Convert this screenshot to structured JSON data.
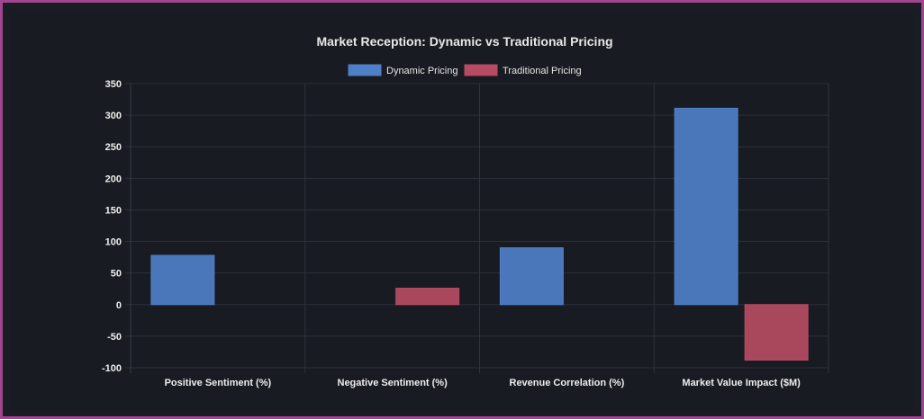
{
  "chart_data": {
    "type": "bar",
    "title": "Market Reception: Dynamic vs Traditional Pricing",
    "categories": [
      "Positive Sentiment (%)",
      "Negative Sentiment (%)",
      "Revenue Correlation (%)",
      "Market Value Impact ($M)"
    ],
    "series": [
      {
        "name": "Dynamic Pricing",
        "values": [
          78,
          0,
          90,
          311
        ],
        "color": "#4f7fc7"
      },
      {
        "name": "Traditional Pricing",
        "values": [
          0,
          26,
          0,
          -88
        ],
        "color": "#b64b63"
      }
    ],
    "ylim": [
      -100,
      350
    ],
    "yticks": [
      -100,
      -50,
      0,
      50,
      100,
      150,
      200,
      250,
      300,
      350
    ],
    "xlabel": "",
    "ylabel": "",
    "legend_position": "top-center",
    "grid": true
  },
  "colors": {
    "frame_border": "#a0468f",
    "background": "#181b21"
  }
}
